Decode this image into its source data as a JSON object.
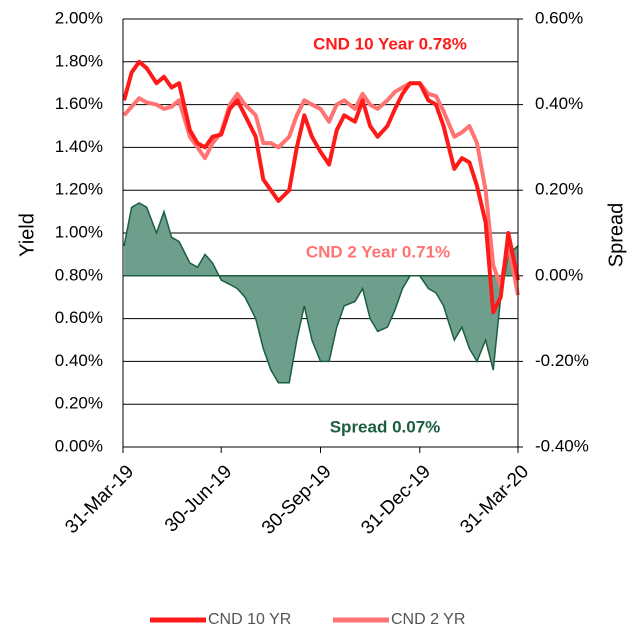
{
  "chart_data": {
    "type": "line",
    "y_label": "Yield",
    "y2_label": "Spread",
    "x": [
      "2019-04-01",
      "2019-04-08",
      "2019-04-15",
      "2019-04-22",
      "2019-05-01",
      "2019-05-08",
      "2019-05-15",
      "2019-05-22",
      "2019-06-01",
      "2019-06-08",
      "2019-06-15",
      "2019-06-22",
      "2019-06-30",
      "2019-07-08",
      "2019-07-15",
      "2019-07-22",
      "2019-08-01",
      "2019-08-08",
      "2019-08-15",
      "2019-08-22",
      "2019-09-01",
      "2019-09-08",
      "2019-09-15",
      "2019-09-22",
      "2019-09-30",
      "2019-10-08",
      "2019-10-15",
      "2019-10-22",
      "2019-11-01",
      "2019-11-08",
      "2019-11-15",
      "2019-11-22",
      "2019-12-01",
      "2019-12-08",
      "2019-12-15",
      "2019-12-22",
      "2019-12-31",
      "2020-01-08",
      "2020-01-15",
      "2020-01-22",
      "2020-02-01",
      "2020-02-08",
      "2020-02-15",
      "2020-02-22",
      "2020-03-01",
      "2020-03-08",
      "2020-03-15",
      "2020-03-22",
      "2020-03-31"
    ],
    "xlim": [
      "2019-03-31",
      "2020-03-31"
    ],
    "xticks": [
      {
        "value": "2019-03-31",
        "label": "31-Mar-19"
      },
      {
        "value": "2019-06-30",
        "label": "30-Jun-19"
      },
      {
        "value": "2019-09-30",
        "label": "30-Sep-19"
      },
      {
        "value": "2019-12-31",
        "label": "31-Dec-19"
      },
      {
        "value": "2020-03-31",
        "label": "31-Mar-20"
      }
    ],
    "ylim": [
      0,
      2
    ],
    "yticks": [
      {
        "value": 0,
        "label": "0.00%"
      },
      {
        "value": 0.2,
        "label": "0.20%"
      },
      {
        "value": 0.4,
        "label": "0.40%"
      },
      {
        "value": 0.6,
        "label": "0.60%"
      },
      {
        "value": 0.8,
        "label": "0.80%"
      },
      {
        "value": 1,
        "label": "1.00%"
      },
      {
        "value": 1.2,
        "label": "1.20%"
      },
      {
        "value": 1.4,
        "label": "1.40%"
      },
      {
        "value": 1.6,
        "label": "1.60%"
      },
      {
        "value": 1.8,
        "label": "1.80%"
      },
      {
        "value": 2,
        "label": "2.00%"
      }
    ],
    "y2lim": [
      -0.4,
      0.6
    ],
    "y2ticks": [
      {
        "value": -0.4,
        "label": "-0.40%"
      },
      {
        "value": -0.2,
        "label": "-0.20%"
      },
      {
        "value": 0,
        "label": "0.00%"
      },
      {
        "value": 0.2,
        "label": "0.20%"
      },
      {
        "value": 0.4,
        "label": "0.40%"
      },
      {
        "value": 0.6,
        "label": "0.60%"
      }
    ],
    "grid": true,
    "series": [
      {
        "name": "CND 10 YR",
        "color": "#ff1a1a",
        "values": [
          1.62,
          1.75,
          1.8,
          1.77,
          1.7,
          1.73,
          1.68,
          1.7,
          1.48,
          1.42,
          1.4,
          1.45,
          1.46,
          1.58,
          1.62,
          1.55,
          1.45,
          1.25,
          1.2,
          1.15,
          1.2,
          1.4,
          1.55,
          1.45,
          1.38,
          1.32,
          1.48,
          1.55,
          1.52,
          1.62,
          1.5,
          1.45,
          1.5,
          1.58,
          1.65,
          1.7,
          1.7,
          1.62,
          1.6,
          1.5,
          1.3,
          1.35,
          1.33,
          1.22,
          1.05,
          0.63,
          0.7,
          1.0,
          0.78
        ]
      },
      {
        "name": "CND 2 YR",
        "color": "#ff7373",
        "values": [
          1.55,
          1.59,
          1.63,
          1.61,
          1.6,
          1.58,
          1.59,
          1.62,
          1.45,
          1.4,
          1.35,
          1.42,
          1.47,
          1.6,
          1.65,
          1.6,
          1.55,
          1.42,
          1.42,
          1.4,
          1.45,
          1.55,
          1.62,
          1.6,
          1.58,
          1.52,
          1.6,
          1.62,
          1.58,
          1.65,
          1.6,
          1.58,
          1.62,
          1.66,
          1.68,
          1.7,
          1.7,
          1.65,
          1.64,
          1.57,
          1.45,
          1.47,
          1.5,
          1.42,
          1.2,
          0.85,
          0.75,
          0.95,
          0.71
        ]
      },
      {
        "name": "Spread",
        "color": "#1b5e40",
        "fill": "#6e9e8c",
        "axis": "y2",
        "area": true,
        "values": [
          0.07,
          0.16,
          0.17,
          0.16,
          0.1,
          0.15,
          0.09,
          0.08,
          0.03,
          0.02,
          0.05,
          0.03,
          -0.01,
          -0.02,
          -0.03,
          -0.05,
          -0.1,
          -0.17,
          -0.22,
          -0.25,
          -0.25,
          -0.15,
          -0.07,
          -0.15,
          -0.2,
          -0.2,
          -0.12,
          -0.07,
          -0.06,
          -0.03,
          -0.1,
          -0.13,
          -0.12,
          -0.08,
          -0.03,
          0.0,
          0.0,
          -0.03,
          -0.04,
          -0.07,
          -0.15,
          -0.12,
          -0.17,
          -0.2,
          -0.15,
          -0.22,
          -0.05,
          0.05,
          0.07
        ]
      }
    ],
    "annotations": [
      {
        "text": "CND 10 Year 0.78%",
        "color": "#ff1a1a"
      },
      {
        "text": "CND 2 Year 0.71%",
        "color": "#ff7373"
      },
      {
        "text": "Spread 0.07%",
        "color": "#1b5e40"
      }
    ],
    "legend": "bottom"
  }
}
